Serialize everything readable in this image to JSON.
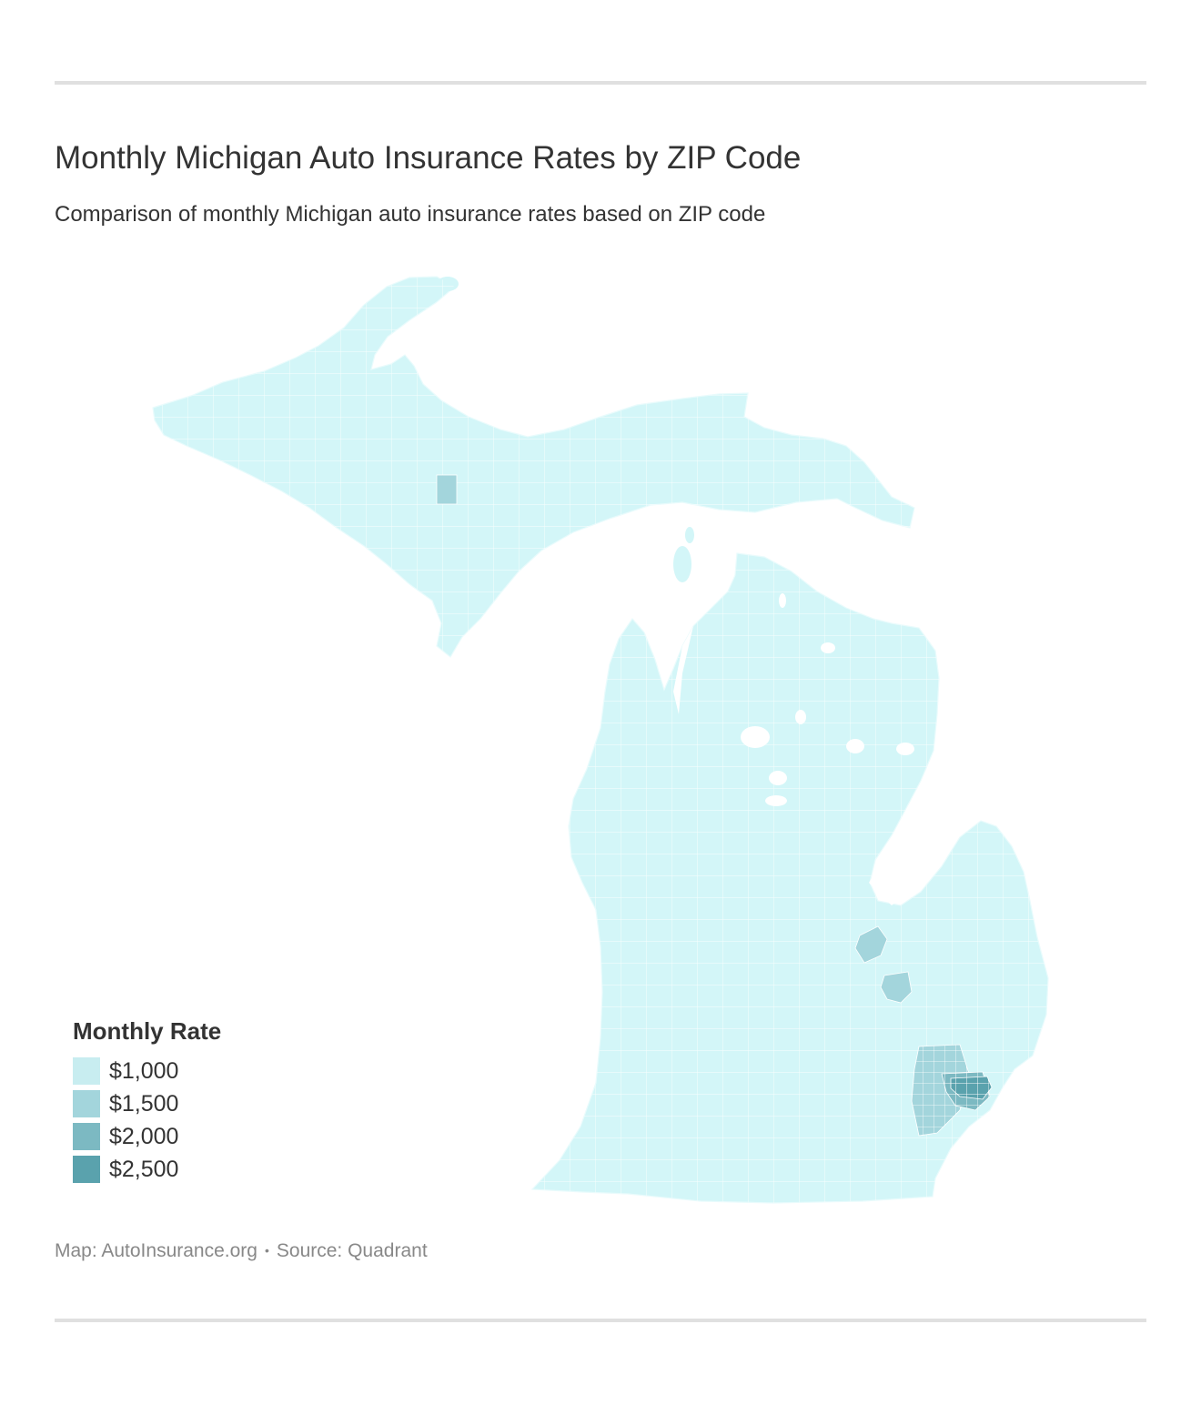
{
  "header": {
    "title": "Monthly Michigan Auto Insurance Rates by ZIP Code",
    "subtitle": "Comparison of monthly Michigan auto insurance rates based on ZIP code"
  },
  "map": {
    "region": "Michigan",
    "regions": [
      {
        "name": "Upper Peninsula",
        "rate_class": "$1,000"
      },
      {
        "name": "Lower Peninsula",
        "rate_class": "$1,000"
      },
      {
        "name": "Saginaw area",
        "rate_class": "$1,500"
      },
      {
        "name": "Flint area",
        "rate_class": "$1,500"
      },
      {
        "name": "Metro Detroit suburbs",
        "rate_class": "$1,500"
      },
      {
        "name": "Detroit outskirts",
        "rate_class": "$2,000"
      },
      {
        "name": "Detroit",
        "rate_class": "$2,500"
      }
    ]
  },
  "legend": {
    "title": "Monthly Rate",
    "items": [
      {
        "label": "$1,000",
        "color": "#c8edf0"
      },
      {
        "label": "$1,500",
        "color": "#a3d5dc"
      },
      {
        "label": "$2,000",
        "color": "#7cb9c2"
      },
      {
        "label": "$2,500",
        "color": "#5aa2ad"
      }
    ]
  },
  "colors": {
    "land_base": "#d3f6f8",
    "border": "#ffffff",
    "rule": "#e0e0e0"
  },
  "footer": {
    "map_credit": "Map: AutoInsurance.org",
    "separator": "•",
    "source": "Source: Quadrant"
  }
}
